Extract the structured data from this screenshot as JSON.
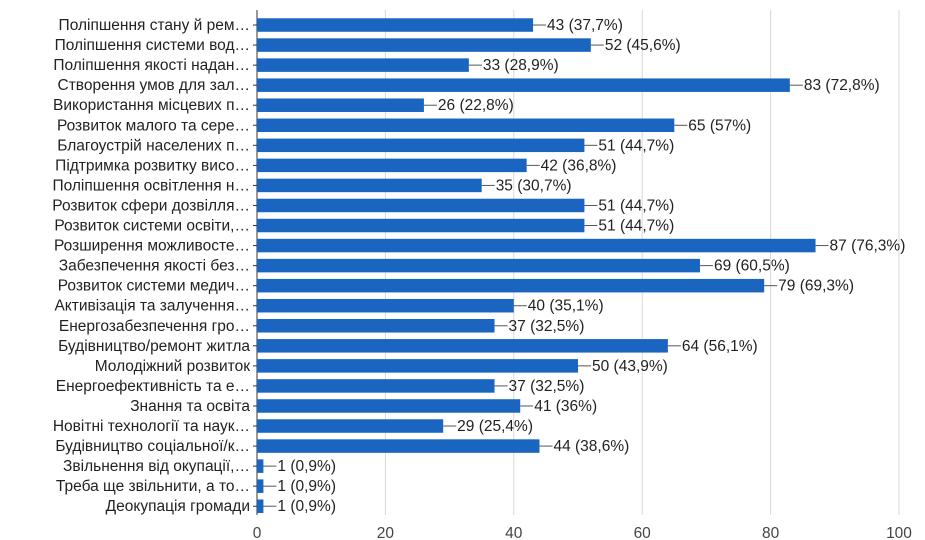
{
  "chart_data": {
    "type": "bar",
    "orientation": "horizontal",
    "categories": [
      "Поліпшення стану й рем…",
      "Поліпшення системи вод…",
      "Поліпшення якості надан…",
      "Створення умов для зал…",
      "Використання місцевих п…",
      "Розвиток малого та сере…",
      "Благоустрій населених п…",
      "Підтримка розвитку висо…",
      "Поліпшення освітлення н…",
      "Розвиток сфери дозвілля…",
      "Розвиток системи освіти,…",
      "Розширення можливосте…",
      "Забезпечення якості без…",
      "Розвиток системи медич…",
      "Активізація та залучення…",
      "Енергозабезпечення гро…",
      "Будівництво/ремонт житла",
      "Молодіжний розвиток",
      "Енергоефективність та е…",
      "Знання та освіта",
      "Новітні технології та наук…",
      "Будівництво соціальної/к…",
      "Звільнення від окупації,…",
      "Треба ще звільнити, а то…",
      "Деокупація громади"
    ],
    "values": [
      43,
      52,
      33,
      83,
      26,
      65,
      51,
      42,
      35,
      51,
      51,
      87,
      69,
      79,
      40,
      37,
      64,
      50,
      37,
      41,
      29,
      44,
      1,
      1,
      1
    ],
    "data_labels": [
      "43 (37,7%)",
      "52 (45,6%)",
      "33 (28,9%)",
      "83 (72,8%)",
      "26 (22,8%)",
      "65 (57%)",
      "51 (44,7%)",
      "42 (36,8%)",
      "35 (30,7%)",
      "51 (44,7%)",
      "51 (44,7%)",
      "87 (76,3%)",
      "69 (60,5%)",
      "79 (69,3%)",
      "40 (35,1%)",
      "37 (32,5%)",
      "64 (56,1%)",
      "50 (43,9%)",
      "37 (32,5%)",
      "41 (36%)",
      "29 (25,4%)",
      "44 (38,6%)",
      "1 (0,9%)",
      "1 (0,9%)",
      "1 (0,9%)"
    ],
    "xlim": [
      0,
      100
    ],
    "xticks": [
      0,
      20,
      40,
      60,
      80,
      100
    ],
    "xtick_labels": [
      "0",
      "20",
      "40",
      "60",
      "80",
      "100"
    ],
    "grid": "vertical",
    "legend": "none",
    "bar_color": "#1a65c0",
    "grid_color": "#d8d8d8",
    "text_color": "#222222"
  }
}
